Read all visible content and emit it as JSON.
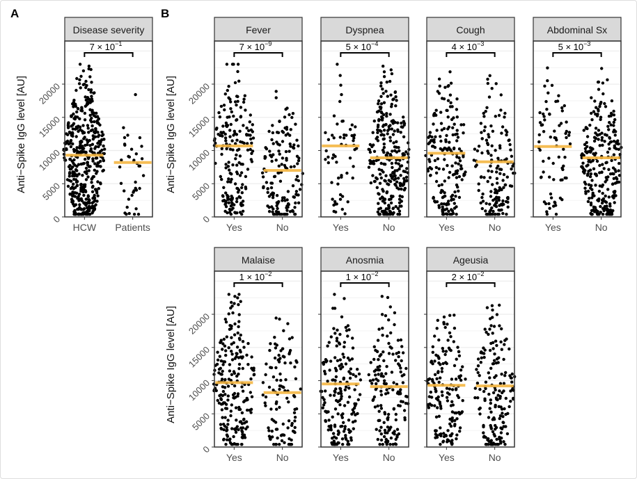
{
  "panel_labels": [
    "A",
    "B"
  ],
  "ylabel": "Anti−Spike IgG level [AU]",
  "colors": {
    "median": "#f5b642",
    "strip": "#d9d9d9",
    "point": "#000000",
    "grid": "#ebebeb"
  },
  "chart_data": [
    {
      "type": "scatter",
      "subtype": "beeswarm",
      "title": "Disease severity",
      "categories": [
        "HCW",
        "Patients"
      ],
      "medians": [
        9300,
        8200
      ],
      "approx_n": [
        600,
        50
      ],
      "p_value": "7 × 10^-1",
      "p_base": "7 × 10",
      "p_exp": "−1",
      "yticks": [
        0,
        5000,
        10000,
        15000,
        20000
      ],
      "ylim": [
        0,
        26500
      ],
      "grid": true
    },
    {
      "type": "scatter",
      "subtype": "beeswarm",
      "title": "Fever",
      "categories": [
        "Yes",
        "No"
      ],
      "medians": [
        10700,
        7000
      ],
      "approx_n": [
        260,
        200
      ],
      "p_value": "7 × 10^-9",
      "p_base": "7 × 10",
      "p_exp": "−9",
      "yticks": [
        0,
        5000,
        10000,
        15000,
        20000
      ],
      "ylim": [
        0,
        26500
      ],
      "grid": true
    },
    {
      "type": "scatter",
      "subtype": "beeswarm",
      "title": "Dyspnea",
      "categories": [
        "Yes",
        "No"
      ],
      "medians": [
        10700,
        8900
      ],
      "approx_n": [
        80,
        380
      ],
      "p_value": "5 × 10^-4",
      "p_base": "5 × 10",
      "p_exp": "−4",
      "ylim": [
        0,
        26500
      ],
      "grid": true
    },
    {
      "type": "scatter",
      "subtype": "beeswarm",
      "title": "Cough",
      "categories": [
        "Yes",
        "No"
      ],
      "medians": [
        9600,
        8300
      ],
      "approx_n": [
        250,
        210
      ],
      "p_value": "4 × 10^-3",
      "p_base": "4 × 10",
      "p_exp": "−3",
      "ylim": [
        0,
        26500
      ],
      "grid": true
    },
    {
      "type": "scatter",
      "subtype": "beeswarm",
      "title": "Abdominal Sx",
      "categories": [
        "Yes",
        "No"
      ],
      "medians": [
        10600,
        8900
      ],
      "approx_n": [
        100,
        360
      ],
      "p_value": "5 × 10^-3",
      "p_base": "5 × 10",
      "p_exp": "−3",
      "ylim": [
        0,
        26500
      ],
      "grid": true
    },
    {
      "type": "scatter",
      "subtype": "beeswarm",
      "title": "Malaise",
      "categories": [
        "Yes",
        "No"
      ],
      "medians": [
        9700,
        8200
      ],
      "approx_n": [
        300,
        150
      ],
      "p_value": "1 × 10^-2",
      "p_base": "1 × 10",
      "p_exp": "−2",
      "yticks": [
        0,
        5000,
        10000,
        15000,
        20000
      ],
      "ylim": [
        0,
        26500
      ],
      "grid": true
    },
    {
      "type": "scatter",
      "subtype": "beeswarm",
      "title": "Anosmia",
      "categories": [
        "Yes",
        "No"
      ],
      "medians": [
        9500,
        9100
      ],
      "approx_n": [
        240,
        210
      ],
      "p_value": "1 × 10^-2",
      "p_base": "1 × 10",
      "p_exp": "−2",
      "ylim": [
        0,
        26500
      ],
      "grid": true
    },
    {
      "type": "scatter",
      "subtype": "beeswarm",
      "title": "Ageusia",
      "categories": [
        "Yes",
        "No"
      ],
      "medians": [
        9300,
        9200
      ],
      "approx_n": [
        220,
        230
      ],
      "p_value": "2 × 10^-2",
      "p_base": "2 × 10",
      "p_exp": "−2",
      "ylim": [
        0,
        26500
      ],
      "grid": true
    }
  ]
}
